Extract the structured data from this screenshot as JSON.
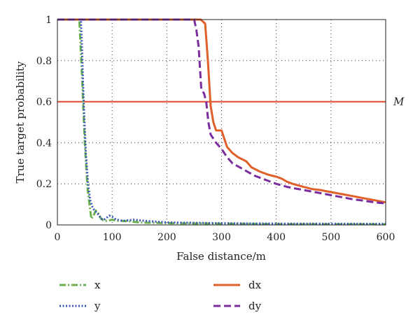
{
  "chart_data": {
    "type": "line",
    "title": "",
    "xlabel": "False distance/m",
    "ylabel": "True target probability",
    "xlim": [
      0,
      600
    ],
    "ylim": [
      0,
      1
    ],
    "xticks": [
      "0",
      "100",
      "200",
      "300",
      "400",
      "500",
      "600"
    ],
    "yticks": [
      "0",
      "0.2",
      "0.4",
      "0.6",
      "0.8",
      "1"
    ],
    "grid": true,
    "legend_position": "bottom",
    "threshold": {
      "label": "M",
      "value": 0.6,
      "color": "#e0452a"
    },
    "series": [
      {
        "name": "x",
        "color": "#6ab04c",
        "style": "dash-dot",
        "points": [
          [
            0,
            1
          ],
          [
            40,
            1
          ],
          [
            45,
            0.72
          ],
          [
            50,
            0.4
          ],
          [
            55,
            0.18
          ],
          [
            60,
            0.07
          ],
          [
            62,
            0.03
          ],
          [
            66,
            0.045
          ],
          [
            70,
            0.07
          ],
          [
            75,
            0.055
          ],
          [
            80,
            0.03
          ],
          [
            85,
            0.02
          ],
          [
            90,
            0.02
          ],
          [
            100,
            0.025
          ],
          [
            110,
            0.02
          ],
          [
            130,
            0.018
          ],
          [
            150,
            0.012
          ],
          [
            200,
            0.008
          ],
          [
            300,
            0.006
          ],
          [
            400,
            0.004
          ],
          [
            600,
            0.003
          ]
        ]
      },
      {
        "name": "y",
        "color": "#3a58b5",
        "style": "dotted",
        "points": [
          [
            0,
            1
          ],
          [
            43,
            1
          ],
          [
            45,
            0.85
          ],
          [
            48,
            0.6
          ],
          [
            52,
            0.35
          ],
          [
            56,
            0.2
          ],
          [
            60,
            0.12
          ],
          [
            65,
            0.08
          ],
          [
            70,
            0.065
          ],
          [
            75,
            0.05
          ],
          [
            80,
            0.03
          ],
          [
            85,
            0.025
          ],
          [
            90,
            0.035
          ],
          [
            95,
            0.045
          ],
          [
            100,
            0.04
          ],
          [
            105,
            0.03
          ],
          [
            110,
            0.025
          ],
          [
            120,
            0.02
          ],
          [
            140,
            0.025
          ],
          [
            160,
            0.02
          ],
          [
            200,
            0.012
          ],
          [
            300,
            0.008
          ],
          [
            400,
            0.006
          ],
          [
            600,
            0.005
          ]
        ]
      },
      {
        "name": "dx",
        "color": "#e0602a",
        "style": "solid",
        "points": [
          [
            0,
            1
          ],
          [
            262,
            1
          ],
          [
            270,
            0.98
          ],
          [
            275,
            0.8
          ],
          [
            280,
            0.58
          ],
          [
            285,
            0.5
          ],
          [
            290,
            0.46
          ],
          [
            300,
            0.46
          ],
          [
            305,
            0.42
          ],
          [
            310,
            0.38
          ],
          [
            320,
            0.35
          ],
          [
            330,
            0.33
          ],
          [
            345,
            0.31
          ],
          [
            355,
            0.28
          ],
          [
            370,
            0.26
          ],
          [
            385,
            0.245
          ],
          [
            400,
            0.235
          ],
          [
            410,
            0.225
          ],
          [
            420,
            0.21
          ],
          [
            430,
            0.2
          ],
          [
            450,
            0.185
          ],
          [
            465,
            0.175
          ],
          [
            480,
            0.17
          ],
          [
            500,
            0.16
          ],
          [
            520,
            0.15
          ],
          [
            540,
            0.14
          ],
          [
            560,
            0.13
          ],
          [
            580,
            0.12
          ],
          [
            600,
            0.11
          ]
        ]
      },
      {
        "name": "dy",
        "color": "#7b2d9e",
        "style": "dashed",
        "points": [
          [
            0,
            1
          ],
          [
            250,
            1
          ],
          [
            254,
            0.95
          ],
          [
            258,
            0.87
          ],
          [
            263,
            0.66
          ],
          [
            268,
            0.64
          ],
          [
            272,
            0.6
          ],
          [
            276,
            0.5
          ],
          [
            280,
            0.44
          ],
          [
            290,
            0.4
          ],
          [
            300,
            0.37
          ],
          [
            310,
            0.33
          ],
          [
            320,
            0.3
          ],
          [
            340,
            0.27
          ],
          [
            360,
            0.24
          ],
          [
            380,
            0.22
          ],
          [
            400,
            0.2
          ],
          [
            420,
            0.185
          ],
          [
            440,
            0.175
          ],
          [
            460,
            0.165
          ],
          [
            480,
            0.155
          ],
          [
            500,
            0.145
          ],
          [
            520,
            0.135
          ],
          [
            540,
            0.125
          ],
          [
            560,
            0.118
          ],
          [
            580,
            0.11
          ],
          [
            600,
            0.105
          ]
        ]
      }
    ]
  }
}
